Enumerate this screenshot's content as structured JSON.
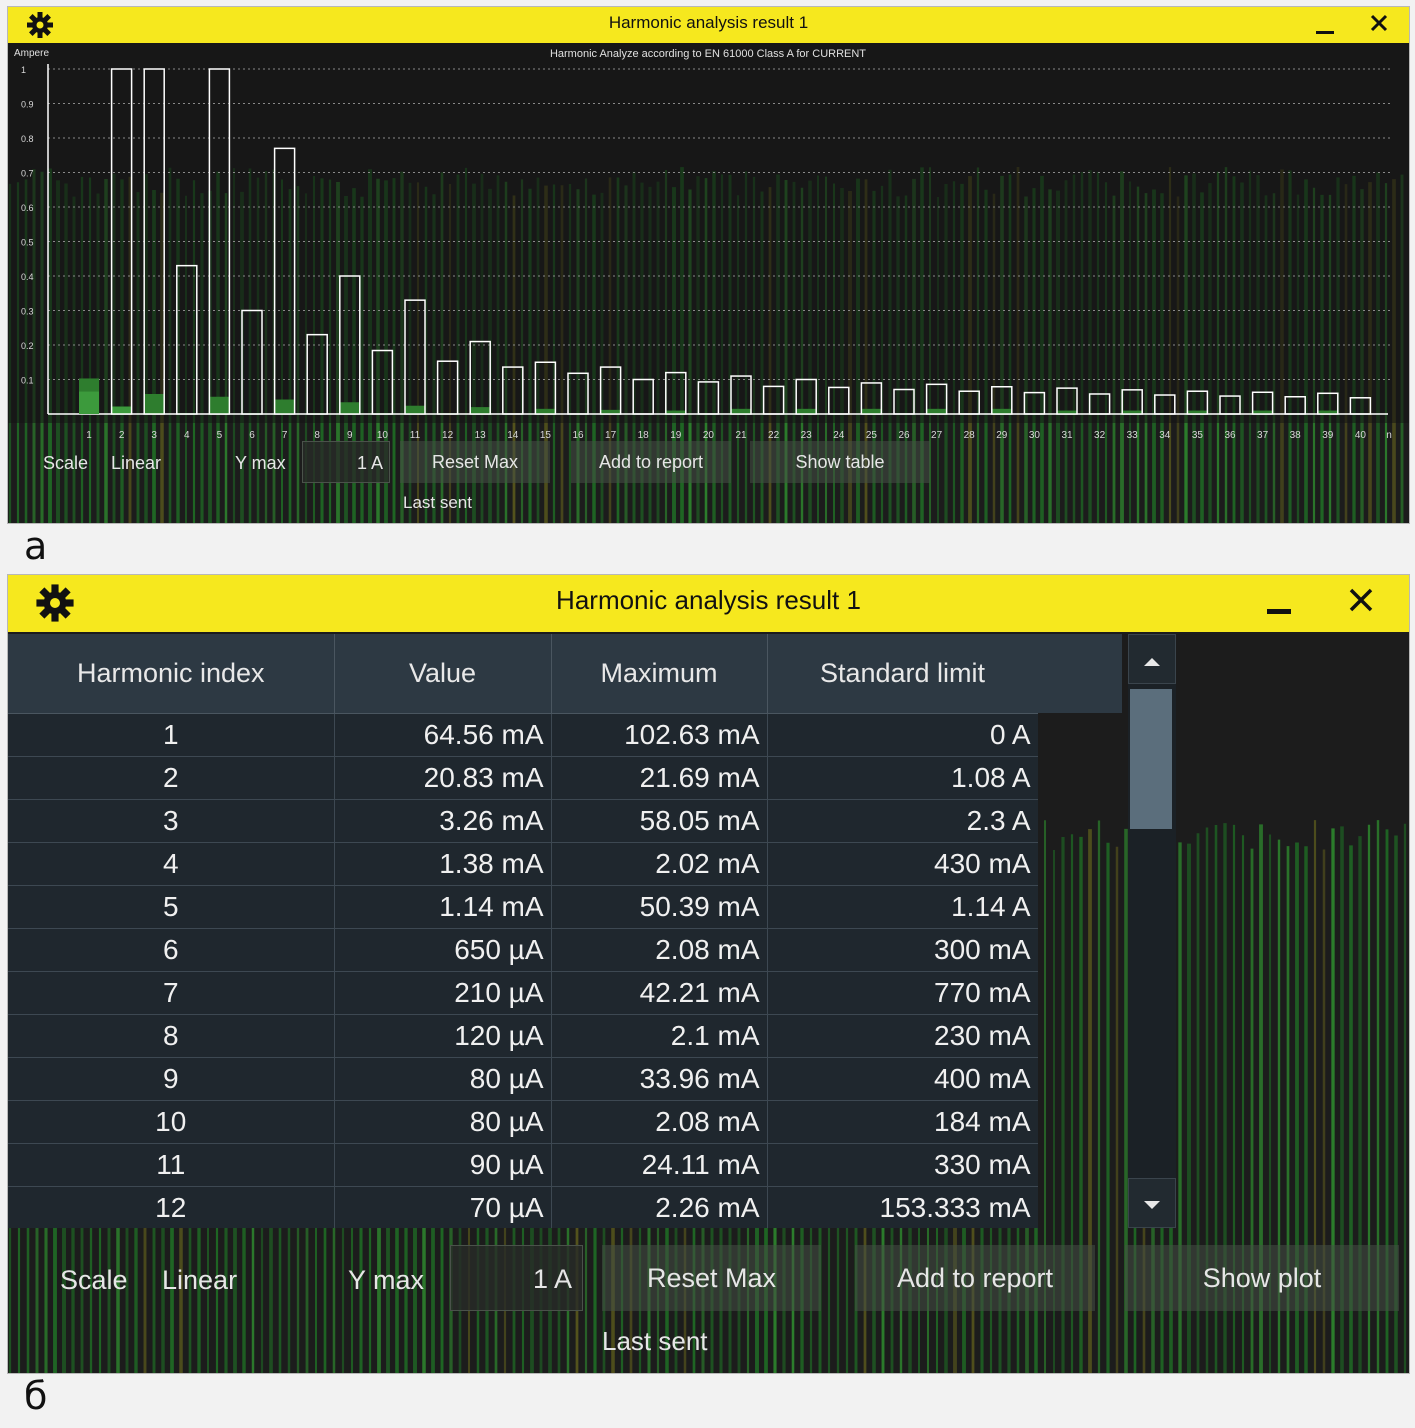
{
  "panel_a": {
    "caption": "а",
    "window": {
      "title": "Harmonic analysis result 1"
    },
    "chart_data": {
      "type": "bar",
      "title": "Harmonic Analyze according to EN 61000 Class A for CURRENT",
      "ylabel": "Ampere",
      "xlabel": "n",
      "ylim": [
        0,
        1
      ],
      "yticks": [
        "1",
        "0.9",
        "0.8",
        "0.7",
        "0.6",
        "0.5",
        "0.4",
        "0.3",
        "0.2",
        "0.1"
      ],
      "categories": [
        "1",
        "2",
        "3",
        "4",
        "5",
        "6",
        "7",
        "8",
        "9",
        "10",
        "11",
        "12",
        "13",
        "14",
        "15",
        "16",
        "17",
        "18",
        "19",
        "20",
        "21",
        "22",
        "23",
        "24",
        "25",
        "26",
        "27",
        "28",
        "29",
        "30",
        "31",
        "32",
        "33",
        "34",
        "35",
        "36",
        "37",
        "38",
        "39",
        "40"
      ],
      "series": [
        {
          "values": [
            0.0,
            1.0,
            1.0,
            0.43,
            1.0,
            0.3,
            0.77,
            0.23,
            0.4,
            0.184,
            0.33,
            0.153,
            0.21,
            0.136,
            0.15,
            0.118,
            0.136,
            0.1,
            0.12,
            0.093,
            0.11,
            0.08,
            0.1,
            0.077,
            0.09,
            0.071,
            0.086,
            0.066,
            0.079,
            0.062,
            0.075,
            0.058,
            0.07,
            0.055,
            0.066,
            0.052,
            0.063,
            0.05,
            0.06,
            0.047
          ]
        },
        {
          "values": [
            0.065,
            0.021,
            0.003,
            0.001,
            0.001,
            0.001,
            0.0,
            0.0,
            0.0,
            0.0,
            0.0,
            0.0,
            0.0,
            0.0,
            0.0,
            0.0,
            0.0,
            0.0,
            0.0,
            0.0,
            0.0,
            0.0,
            0.0,
            0.0,
            0.0,
            0.0,
            0.0,
            0.0,
            0.0,
            0.0,
            0.0,
            0.0,
            0.0,
            0.0,
            0.0,
            0.0,
            0.0,
            0.0,
            0.0,
            0.0
          ]
        },
        {
          "values": [
            0.103,
            0.022,
            0.058,
            0.002,
            0.05,
            0.002,
            0.042,
            0.002,
            0.034,
            0.002,
            0.024,
            0.002,
            0.02,
            0.0,
            0.015,
            0.0,
            0.012,
            0.0,
            0.01,
            0.0,
            0.015,
            0.0,
            0.015,
            0.0,
            0.015,
            0.0,
            0.015,
            0.0,
            0.015,
            0.0,
            0.01,
            0.0,
            0.01,
            0.0,
            0.01,
            0.0,
            0.01,
            0.0,
            0.01,
            0.0
          ]
        }
      ],
      "grid": true,
      "colors": {
        "limit_outline": "#ffffff",
        "value": "#3c9a3c",
        "maximum": "#2e7d2e",
        "grid": "#8a8a8a"
      }
    },
    "controls": {
      "scale_label": "Scale",
      "scale_value": "Linear",
      "ymax_label": "Y max",
      "ymax_value": "1 A",
      "reset_max": "Reset Max",
      "add_to_report": "Add to report",
      "toggle_view": "Show table",
      "last_sent": "Last sent"
    }
  },
  "panel_b": {
    "caption": "б",
    "window": {
      "title": "Harmonic analysis result 1"
    },
    "table": {
      "headers": [
        "Harmonic index",
        "Value",
        "Maximum",
        "Standard limit"
      ],
      "rows": [
        [
          "1",
          "64.56 mA",
          "102.63 mA",
          "0 A"
        ],
        [
          "2",
          "20.83 mA",
          "21.69 mA",
          "1.08 A"
        ],
        [
          "3",
          "3.26 mA",
          "58.05 mA",
          "2.3 A"
        ],
        [
          "4",
          "1.38 mA",
          "2.02 mA",
          "430 mA"
        ],
        [
          "5",
          "1.14 mA",
          "50.39 mA",
          "1.14 A"
        ],
        [
          "6",
          "650 µA",
          "2.08 mA",
          "300 mA"
        ],
        [
          "7",
          "210 µA",
          "42.21 mA",
          "770 mA"
        ],
        [
          "8",
          "120 µA",
          "2.1 mA",
          "230 mA"
        ],
        [
          "9",
          "80 µA",
          "33.96 mA",
          "400 mA"
        ],
        [
          "10",
          "80 µA",
          "2.08 mA",
          "184 mA"
        ],
        [
          "11",
          "90 µA",
          "24.11 mA",
          "330 mA"
        ],
        [
          "12",
          "70 µA",
          "2.26 mA",
          "153.333 mA"
        ]
      ]
    },
    "controls": {
      "scale_label": "Scale",
      "scale_value": "Linear",
      "ymax_label": "Y max",
      "ymax_value": "1 A",
      "reset_max": "Reset Max",
      "add_to_report": "Add to report",
      "toggle_view": "Show plot",
      "last_sent": "Last sent"
    }
  },
  "icons": {
    "settings": "gear-icon",
    "minimize": "minimize-icon",
    "close": "close-icon",
    "scroll_up": "triangle-up-icon",
    "scroll_down": "triangle-down-icon"
  },
  "colors": {
    "title_bar": "#f6e81e",
    "window_bg": "#1c1c1c",
    "table_header": "#2d3943",
    "table_cell": "#1f272e"
  }
}
